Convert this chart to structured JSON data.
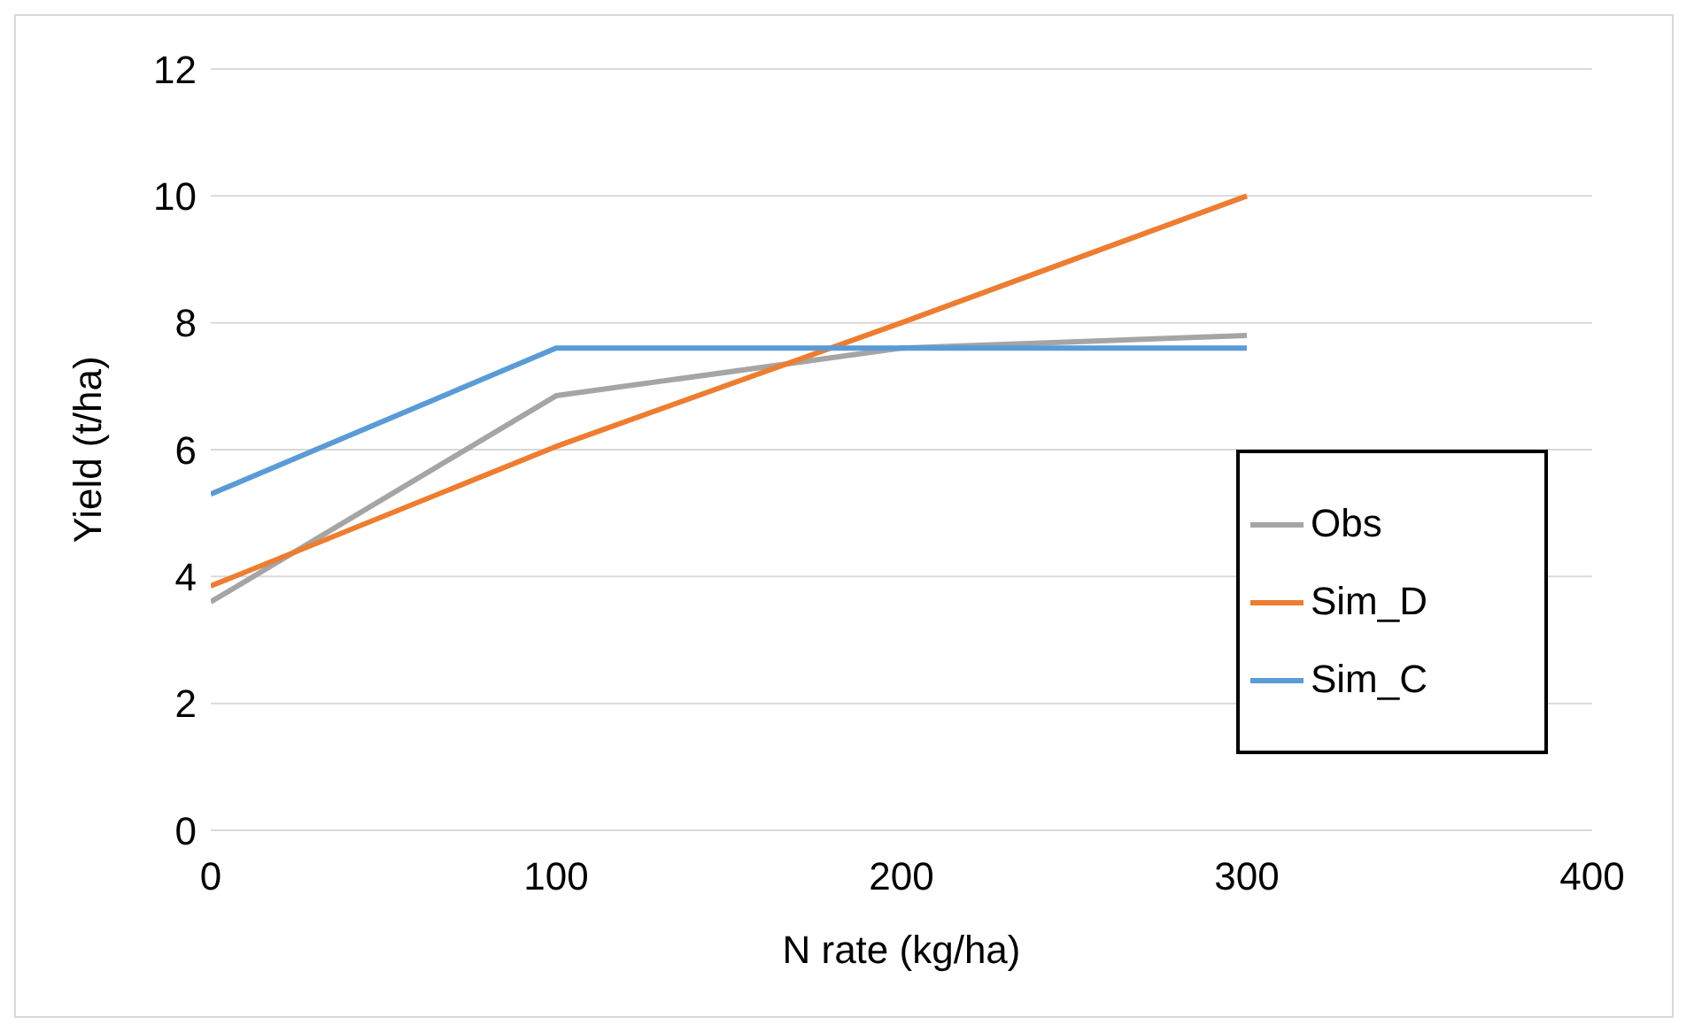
{
  "chart_data": {
    "type": "line",
    "xlabel": "N rate (kg/ha)",
    "ylabel": "Yield (t/ha)",
    "x": [
      0,
      100,
      200,
      300
    ],
    "series": [
      {
        "name": "Obs",
        "color": "#a5a5a5",
        "values": [
          3.6,
          6.85,
          7.6,
          7.8
        ]
      },
      {
        "name": "Sim_D",
        "color": "#ed7d31",
        "values": [
          3.85,
          6.05,
          8.0,
          10.0
        ]
      },
      {
        "name": "Sim_C",
        "color": "#5b9bd5",
        "values": [
          5.3,
          7.6,
          7.6,
          7.6
        ]
      }
    ],
    "xlim": [
      0,
      400
    ],
    "xticks": [
      0,
      100,
      200,
      300,
      400
    ],
    "ylim": [
      0,
      12
    ],
    "yticks": [
      0,
      2,
      4,
      6,
      8,
      10,
      12
    ],
    "grid": "y",
    "legend": "right",
    "marker": "none",
    "line_style": "solid"
  }
}
